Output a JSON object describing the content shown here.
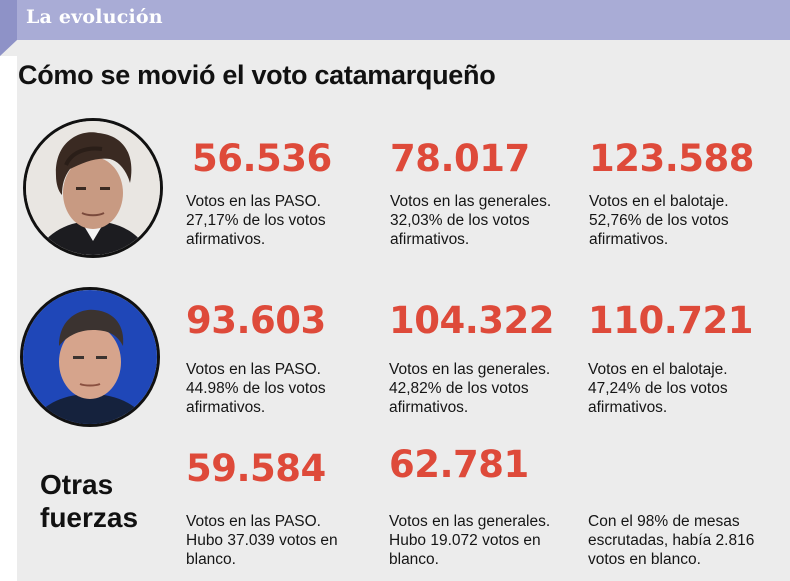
{
  "header": {
    "label": "La evolución"
  },
  "title": "Cómo se movió el voto catamarqueño",
  "rows": [
    {
      "cells": [
        {
          "value": "56.536",
          "lines": [
            "Votos en las PASO.",
            "27,17% de los votos",
            "afirmativos."
          ]
        },
        {
          "value": "78.017",
          "lines": [
            "Votos en las generales.",
            "32,03% de los votos",
            "afirmativos."
          ]
        },
        {
          "value": "123.588",
          "lines": [
            "Votos en el balotaje.",
            "52,76% de los votos",
            "afirmativos."
          ]
        }
      ]
    },
    {
      "cells": [
        {
          "value": "93.603",
          "lines": [
            "Votos en las PASO.",
            "44.98% de los votos",
            "afirmativos."
          ]
        },
        {
          "value": "104.322",
          "lines": [
            "Votos en las generales.",
            "42,82% de los votos",
            "afirmativos."
          ]
        },
        {
          "value": "110.721",
          "lines": [
            "Votos en el balotaje.",
            "47,24% de los votos",
            "afirmativos."
          ]
        }
      ]
    },
    {
      "label_lines": [
        "Otras",
        "fuerzas"
      ],
      "cells": [
        {
          "value": "59.584",
          "lines": [
            "Votos en las PASO.",
            "Hubo 37.039 votos en",
            "blanco."
          ]
        },
        {
          "value": "62.781",
          "lines": [
            "Votos en las generales.",
            "Hubo 19.072 votos en",
            "blanco."
          ]
        },
        {
          "value": "",
          "lines": [
            "Con el 98% de mesas",
            "escrutadas, había 2.816",
            "votos en blanco."
          ]
        }
      ]
    }
  ],
  "colors": {
    "accent": "#de4a3a",
    "header": "#a9acd6",
    "panel": "#ececec"
  }
}
